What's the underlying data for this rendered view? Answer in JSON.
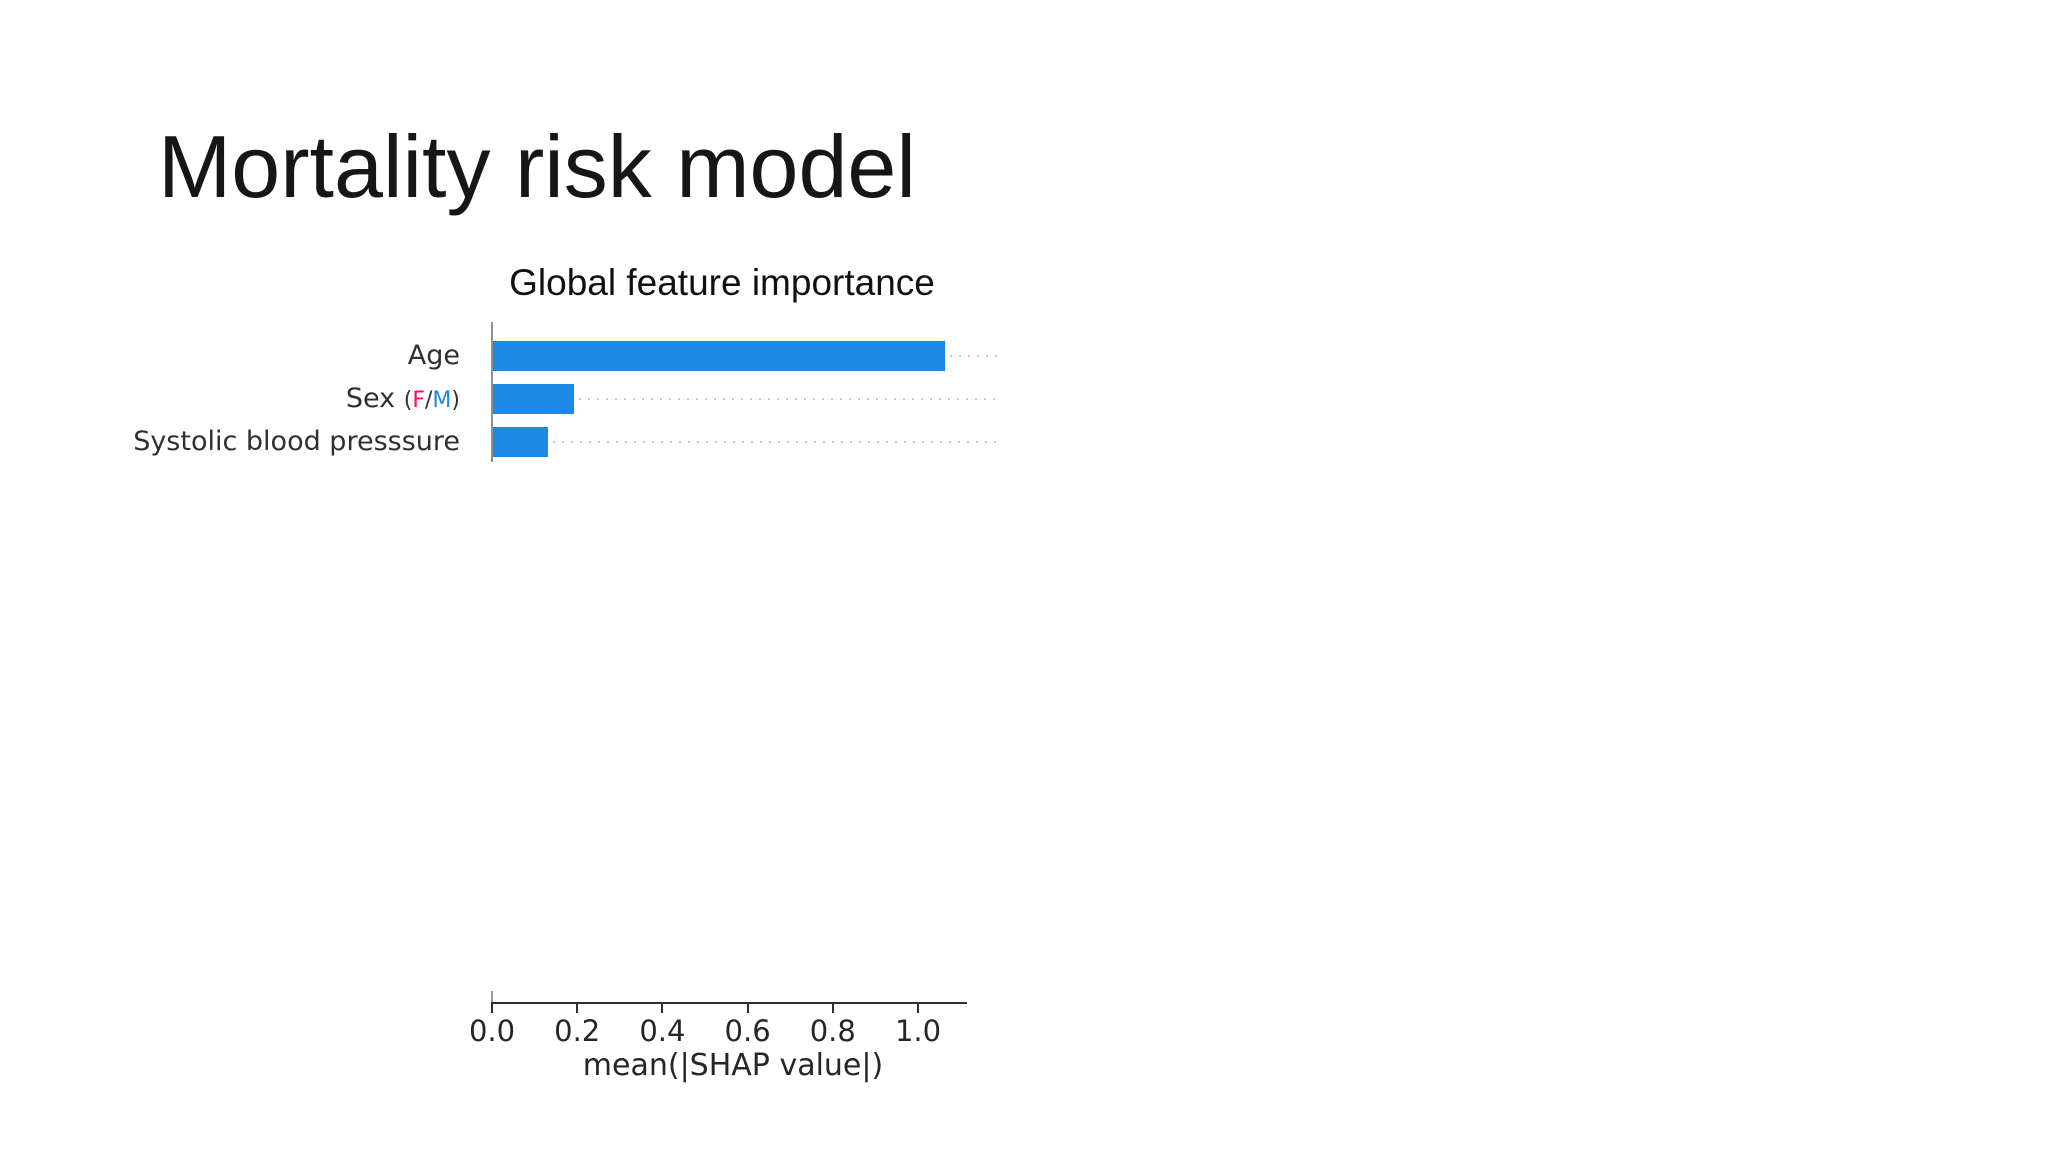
{
  "slide": {
    "title": "Mortality risk model"
  },
  "chart_data": {
    "type": "bar",
    "orientation": "horizontal",
    "title": "Global feature importance",
    "categories": [
      "Age",
      "Sex (F/M)",
      "Systolic blood presssure"
    ],
    "values": [
      1.06,
      0.19,
      0.13
    ],
    "xlabel": "mean(|SHAP value|)",
    "ylabel": "",
    "x_tick_labels": [
      "0.0",
      "0.2",
      "0.4",
      "0.6",
      "0.8",
      "1.0"
    ],
    "x_tick_values": [
      0,
      0.2,
      0.4,
      0.6,
      0.8,
      1.0
    ],
    "xlim": [
      0,
      1.12
    ],
    "grid": "off",
    "legend": "none",
    "bar_color": "#1E88E5",
    "leader_dot_color": "#c9c9c9",
    "category_rich": [
      [
        {
          "t": "Age"
        }
      ],
      [
        {
          "t": "Sex "
        },
        {
          "t": "(",
          "small": true
        },
        {
          "t": "F",
          "small": true,
          "color": "#ff0d57"
        },
        {
          "t": "/",
          "small": true
        },
        {
          "t": "M",
          "small": true,
          "color": "#1E88E5"
        },
        {
          "t": ")",
          "small": true
        }
      ],
      [
        {
          "t": "Systolic blood presssure"
        }
      ]
    ]
  },
  "colors": {
    "accent_blue": "#1E88E5",
    "female_pink": "#ff0d57",
    "male_blue": "#1E88E5",
    "text_dark": "#161616"
  }
}
